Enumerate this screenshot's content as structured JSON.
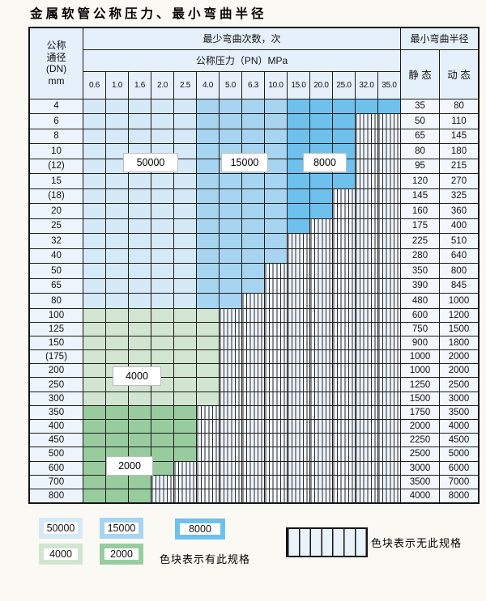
{
  "title": "金属软管公称压力、最小弯曲半径",
  "table": {
    "header": {
      "dn_lines": [
        "公称",
        "通径",
        "(DN)",
        "mm"
      ],
      "cycles": "最少弯曲次数，次",
      "pressure": "公称压力（PN）MPa",
      "radius": "最小弯曲半径",
      "static": "静 态",
      "dynamic": "动 态"
    },
    "pressure_columns": [
      "0.6",
      "1.0",
      "1.6",
      "2.0",
      "2.5",
      "4.0",
      "5.0",
      "6.3",
      "10.0",
      "15.0",
      "20.0",
      "25.0",
      "32.0",
      "35.0"
    ],
    "zone_legend": {
      "A": "50000",
      "B": "15000",
      "C": "8000",
      "L": "4000",
      "D": "2000",
      "X": "无此规格"
    },
    "rows": [
      {
        "dn": "4",
        "cells": "AAAAABBBBCCCCC",
        "static": "35",
        "dynamic": "80"
      },
      {
        "dn": "6",
        "cells": "AAAAABBBBCCCXX",
        "static": "50",
        "dynamic": "110"
      },
      {
        "dn": "8",
        "cells": "AAAAABBBBCCCXX",
        "static": "65",
        "dynamic": "145"
      },
      {
        "dn": "10",
        "cells": "AAAAABBBBCCCXX",
        "static": "80",
        "dynamic": "180"
      },
      {
        "dn": "(12)",
        "cells": "AAAAABBBBCCCXX",
        "static": "95",
        "dynamic": "215"
      },
      {
        "dn": "15",
        "cells": "AAAAABBBBCCCXX",
        "static": "120",
        "dynamic": "270"
      },
      {
        "dn": "(18)",
        "cells": "AAAAABBBBCCXXX",
        "static": "145",
        "dynamic": "325"
      },
      {
        "dn": "20",
        "cells": "AAAAABBBBCCXXX",
        "static": "160",
        "dynamic": "360"
      },
      {
        "dn": "25",
        "cells": "AAAAABBBBCXXXX",
        "static": "175",
        "dynamic": "400"
      },
      {
        "dn": "32",
        "cells": "AAAAABBBBXXXXX",
        "static": "225",
        "dynamic": "510"
      },
      {
        "dn": "40",
        "cells": "AAAAABBBBXXXXX",
        "static": "280",
        "dynamic": "640"
      },
      {
        "dn": "50",
        "cells": "AAAAABBBXXXXXX",
        "static": "350",
        "dynamic": "800"
      },
      {
        "dn": "65",
        "cells": "AAAAABBBXXXXXX",
        "static": "390",
        "dynamic": "845"
      },
      {
        "dn": "80",
        "cells": "AAAAABBXXXXXXX",
        "static": "480",
        "dynamic": "1000"
      },
      {
        "dn": "100",
        "cells": "LLLLLLXXXXXXXX",
        "static": "600",
        "dynamic": "1200"
      },
      {
        "dn": "125",
        "cells": "LLLLLLXXXXXXXX",
        "static": "750",
        "dynamic": "1500"
      },
      {
        "dn": "150",
        "cells": "LLLLLLXXXXXXXX",
        "static": "900",
        "dynamic": "1800"
      },
      {
        "dn": "(175)",
        "cells": "LLLLLLXXXXXXXX",
        "static": "1000",
        "dynamic": "2000"
      },
      {
        "dn": "200",
        "cells": "LLLLLLXXXXXXXX",
        "static": "1000",
        "dynamic": "2000"
      },
      {
        "dn": "250",
        "cells": "LLLLLLXXXXXXXX",
        "static": "1250",
        "dynamic": "2500"
      },
      {
        "dn": "300",
        "cells": "LLLLLLXXXXXXXX",
        "static": "1500",
        "dynamic": "3000"
      },
      {
        "dn": "350",
        "cells": "DDDDDXXXXXXXXX",
        "static": "1750",
        "dynamic": "3500"
      },
      {
        "dn": "400",
        "cells": "DDDDDXXXXXXXXX",
        "static": "2000",
        "dynamic": "4000"
      },
      {
        "dn": "450",
        "cells": "DDDDDXXXXXXXXX",
        "static": "2250",
        "dynamic": "4500"
      },
      {
        "dn": "500",
        "cells": "DDDDDXXXXXXXXX",
        "static": "2500",
        "dynamic": "5000"
      },
      {
        "dn": "600",
        "cells": "DDDDXXXXXXXXXX",
        "static": "3000",
        "dynamic": "6000"
      },
      {
        "dn": "700",
        "cells": "DDDXXXXXXXXXXX",
        "static": "3500",
        "dynamic": "7000"
      },
      {
        "dn": "800",
        "cells": "DDDXXXXXXXXXXX",
        "static": "4000",
        "dynamic": "8000"
      }
    ]
  },
  "overlay_labels": {
    "l50000": "50000",
    "l15000": "15000",
    "l8000": "8000",
    "l4000": "4000",
    "l2000": "2000"
  },
  "legend": {
    "items": [
      {
        "label": "50000",
        "color": "#d5e9f7"
      },
      {
        "label": "15000",
        "color": "#a7d4f0"
      },
      {
        "label": "8000",
        "color": "#6ec1ed"
      },
      {
        "label": "4000",
        "color": "#d2e5d0"
      },
      {
        "label": "2000",
        "color": "#98cc9e"
      }
    ],
    "has_spec_text": "色块表示有此规格",
    "no_spec_text": "色块表示无此规格",
    "no_spec_fill": "#eaf2fa"
  },
  "colors": {
    "cycles_50000": "#d5e9f7",
    "cycles_15000": "#a7d4f0",
    "cycles_8000": "#6ec1ed",
    "cycles_4000": "#d2e5d0",
    "cycles_2000": "#98cc9e",
    "header_bg": "#e6f0fa",
    "row_label_bg": "#edf4fb",
    "border": "#1c1c1c",
    "page_bg": "#fbf9f3"
  }
}
